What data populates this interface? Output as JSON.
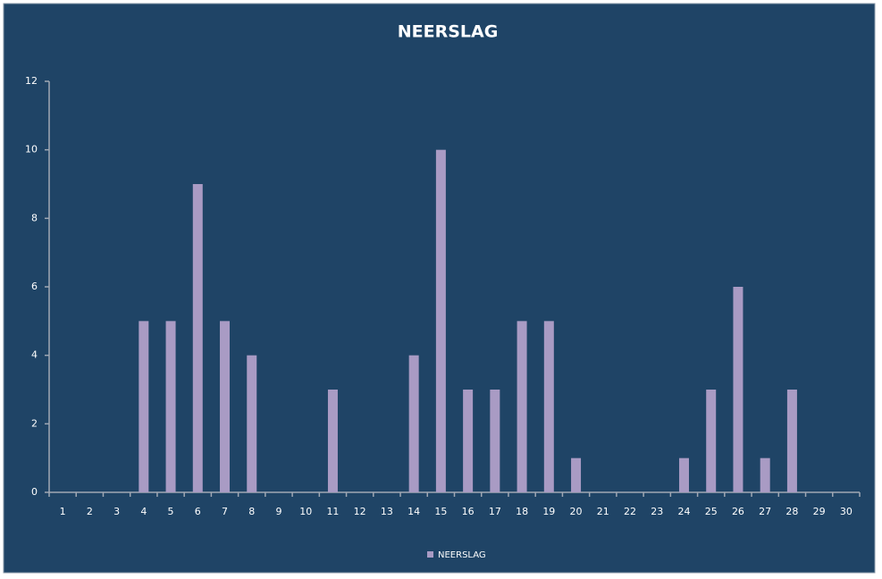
{
  "chart_data": {
    "type": "bar",
    "title": "NEERSLAG",
    "categories": [
      "1",
      "2",
      "3",
      "4",
      "5",
      "6",
      "7",
      "8",
      "9",
      "10",
      "11",
      "12",
      "13",
      "14",
      "15",
      "16",
      "17",
      "18",
      "19",
      "20",
      "21",
      "22",
      "23",
      "24",
      "25",
      "26",
      "27",
      "28",
      "29",
      "30"
    ],
    "series": [
      {
        "name": "NEERSLAG",
        "color": "#a99bc4",
        "values": [
          0,
          0,
          0,
          5,
          5,
          9,
          5,
          4,
          0,
          0,
          3,
          0,
          0,
          4,
          10,
          3,
          3,
          5,
          5,
          1,
          0,
          0,
          0,
          1,
          3,
          6,
          1,
          3,
          0,
          0
        ]
      }
    ],
    "ylim": [
      0,
      12
    ],
    "yticks": [
      0,
      2,
      4,
      6,
      8,
      10,
      12
    ],
    "grid": false,
    "legend": "bottom"
  }
}
